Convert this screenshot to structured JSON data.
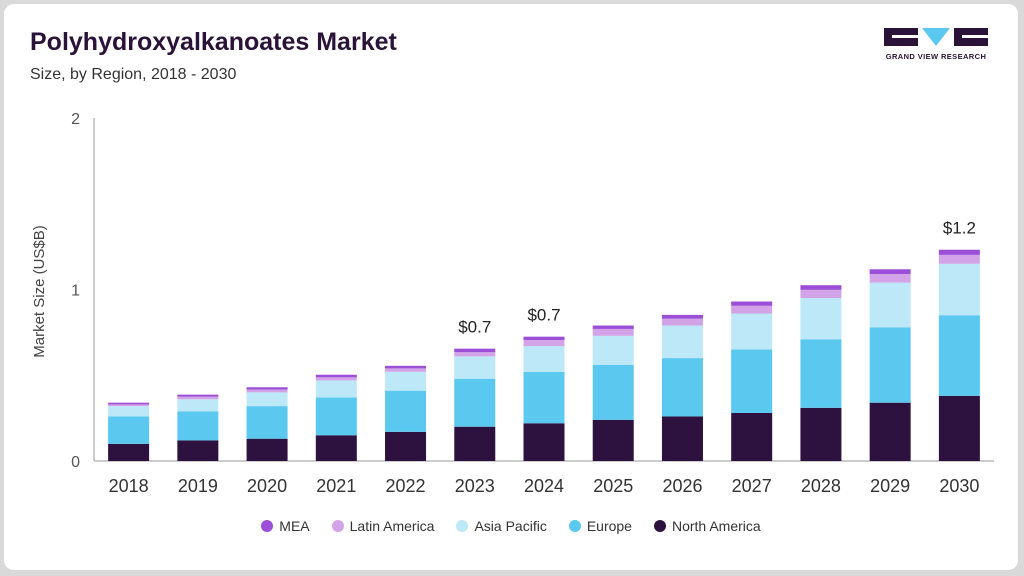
{
  "header": {
    "title": "Polyhydroxyalkanoates Market",
    "subtitle": "Size, by Region, 2018 - 2030",
    "brand": "GRAND VIEW RESEARCH"
  },
  "colors": {
    "mea": "#9b4fd6",
    "latin_america": "#d3a3e8",
    "asia_pacific": "#bde8f8",
    "europe": "#5bc8f0",
    "north_america": "#2d1240",
    "logo_dark": "#2a1239",
    "logo_accent": "#5bc8f0"
  },
  "chart_data": {
    "type": "bar",
    "stacked": true,
    "title": "Polyhydroxyalkanoates Market",
    "subtitle": "Size, by Region, 2018 - 2030",
    "xlabel": "",
    "ylabel": "Market Size (US$B)",
    "ylim": [
      0,
      2
    ],
    "yticks": [
      "0",
      "1",
      "2"
    ],
    "ytick_values": [
      0,
      1,
      2
    ],
    "categories": [
      "2018",
      "2019",
      "2020",
      "2021",
      "2022",
      "2023",
      "2024",
      "2025",
      "2026",
      "2027",
      "2028",
      "2029",
      "2030"
    ],
    "series": [
      {
        "name": "North America",
        "key": "north_america",
        "values": [
          0.1,
          0.12,
          0.13,
          0.15,
          0.17,
          0.2,
          0.22,
          0.24,
          0.26,
          0.28,
          0.31,
          0.34,
          0.38
        ]
      },
      {
        "name": "Europe",
        "key": "europe",
        "values": [
          0.16,
          0.17,
          0.19,
          0.22,
          0.24,
          0.28,
          0.3,
          0.32,
          0.34,
          0.37,
          0.4,
          0.44,
          0.47
        ]
      },
      {
        "name": "Asia Pacific",
        "key": "asia_pacific",
        "values": [
          0.06,
          0.07,
          0.08,
          0.1,
          0.11,
          0.13,
          0.15,
          0.17,
          0.19,
          0.21,
          0.24,
          0.26,
          0.3
        ]
      },
      {
        "name": "Latin America",
        "key": "latin_america",
        "values": [
          0.01,
          0.015,
          0.017,
          0.018,
          0.02,
          0.025,
          0.035,
          0.04,
          0.04,
          0.045,
          0.048,
          0.05,
          0.052
        ]
      },
      {
        "name": "MEA",
        "key": "mea",
        "values": [
          0.01,
          0.012,
          0.013,
          0.015,
          0.015,
          0.02,
          0.02,
          0.02,
          0.022,
          0.025,
          0.027,
          0.028,
          0.03
        ]
      }
    ],
    "data_labels": [
      {
        "category": "2023",
        "text": "$0.7"
      },
      {
        "category": "2024",
        "text": "$0.7"
      },
      {
        "category": "2030",
        "text": "$1.2"
      }
    ],
    "legend": [
      "MEA",
      "Latin America",
      "Asia Pacific",
      "Europe",
      "North America"
    ],
    "legend_position": "bottom"
  }
}
